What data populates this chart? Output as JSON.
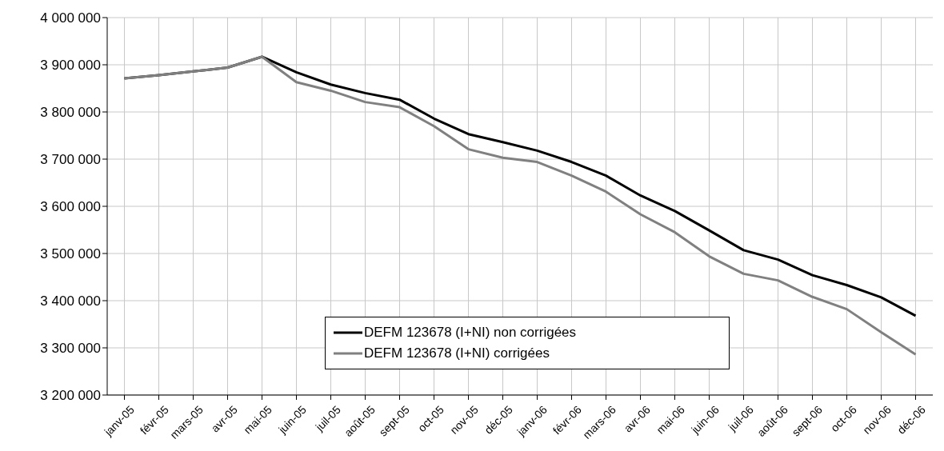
{
  "chart_data": {
    "type": "line",
    "categories": [
      "janv-05",
      "févr-05",
      "mars-05",
      "avr-05",
      "mai-05",
      "juin-05",
      "juil-05",
      "août-05",
      "sept-05",
      "oct-05",
      "nov-05",
      "déc-05",
      "janv-06",
      "févr-06",
      "mars-06",
      "avr-06",
      "mai-06",
      "juin-06",
      "juil-06",
      "août-06",
      "sept-06",
      "oct-06",
      "nov-06",
      "déc-06"
    ],
    "series": [
      {
        "name": "DEFM 123678 (I+NI) non corrigées",
        "color": "#000000",
        "values": [
          3871000,
          3878000,
          3886000,
          3894000,
          3917000,
          3884000,
          3858000,
          3840000,
          3826000,
          3786000,
          3753000,
          3736000,
          3718000,
          3694000,
          3665000,
          3623000,
          3590000,
          3549000,
          3507000,
          3487000,
          3454000,
          3433000,
          3407000,
          3368000
        ]
      },
      {
        "name": "DEFM 123678 (I+NI) corrigées",
        "color": "#808080",
        "values": [
          3871000,
          3878000,
          3886000,
          3894000,
          3917000,
          3863000,
          3845000,
          3821000,
          3810000,
          3770000,
          3721000,
          3703000,
          3694000,
          3665000,
          3631000,
          3583000,
          3545000,
          3494000,
          3457000,
          3443000,
          3408000,
          3382000,
          3333000,
          3286000
        ]
      }
    ],
    "ylim": [
      3200000,
      4000000
    ],
    "yticks": [
      {
        "value": 3200000,
        "label": "3 200 000"
      },
      {
        "value": 3300000,
        "label": "3 300 000"
      },
      {
        "value": 3400000,
        "label": "3 400 000"
      },
      {
        "value": 3500000,
        "label": "3 500 000"
      },
      {
        "value": 3600000,
        "label": "3 600 000"
      },
      {
        "value": 3700000,
        "label": "3 700 000"
      },
      {
        "value": 3800000,
        "label": "3 800 000"
      },
      {
        "value": 3900000,
        "label": "3 900 000"
      },
      {
        "value": 4000000,
        "label": "4 000 000"
      }
    ],
    "grid": true,
    "legend": "bottom",
    "marker": "none",
    "line_style": "solid"
  }
}
